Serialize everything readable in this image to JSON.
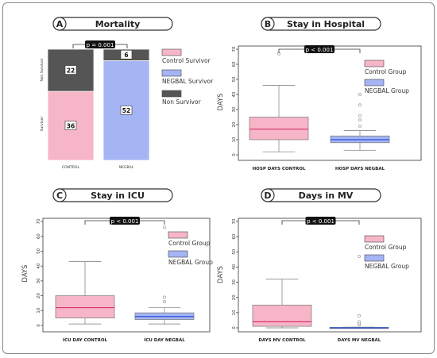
{
  "chart_data": [
    {
      "type": "bar",
      "panel_letter": "A",
      "title": "Mortality",
      "categories": [
        "CONTROL",
        "NEGBAL"
      ],
      "segment_labels": [
        "Survivor",
        "Non Survivor"
      ],
      "series": [
        {
          "name": "Control Survivor",
          "color": "#f7b6c8",
          "values": [
            36,
            0
          ]
        },
        {
          "name": "NEGBAL Survivor",
          "color": "#a5b4f5",
          "values": [
            0,
            52
          ]
        },
        {
          "name": "Non Survivor",
          "color": "#555555",
          "values": [
            22,
            6
          ]
        }
      ],
      "pvalue": "p = 0.001",
      "legend_position": "right"
    },
    {
      "type": "box",
      "panel_letter": "B",
      "title": "Stay in Hospital",
      "ylabel": "DAYS",
      "ylim": [
        0,
        70
      ],
      "yticks": [
        0,
        10,
        20,
        30,
        40,
        50,
        60,
        70
      ],
      "pvalue": "p < 0.001",
      "legend": [
        {
          "name": "Control Group",
          "color": "#f7b6c8"
        },
        {
          "name": "NEGBAL Group",
          "color": "#a5b4f5"
        }
      ],
      "groups": [
        {
          "label": "HOSP DAYS CONTROL",
          "color": "#f7b6c8",
          "median_color": "#d8336e",
          "min": 2,
          "q1": 10,
          "median": 17,
          "q3": 25,
          "max": 46,
          "outliers": [
            67
          ]
        },
        {
          "label": "HOSP DAYS NEGBAL",
          "color": "#a5b4f5",
          "median_color": "#2c52d8",
          "min": 3,
          "q1": 8,
          "median": 10,
          "q3": 12.5,
          "max": 16,
          "outliers": [
            19,
            23,
            26,
            33,
            40
          ]
        }
      ]
    },
    {
      "type": "box",
      "panel_letter": "C",
      "title": "Stay in ICU",
      "ylabel": "DAYS",
      "ylim": [
        0,
        70
      ],
      "yticks": [
        0,
        10,
        20,
        30,
        40,
        50,
        60,
        70
      ],
      "pvalue": "p < 0.001",
      "legend": [
        {
          "name": "Control Group",
          "color": "#f7b6c8"
        },
        {
          "name": "NEGBAL Group",
          "color": "#a5b4f5"
        }
      ],
      "groups": [
        {
          "label": "ICU DAY CONTROL",
          "color": "#f7b6c8",
          "median_color": "#d8336e",
          "min": 1,
          "q1": 5,
          "median": 12,
          "q3": 20,
          "max": 43,
          "outliers": []
        },
        {
          "label": "ICU DAY NEGBAL",
          "color": "#a5b4f5",
          "median_color": "#2c52d8",
          "min": 1,
          "q1": 4,
          "median": 6,
          "q3": 8.5,
          "max": 12,
          "outliers": [
            16,
            19,
            66
          ]
        }
      ]
    },
    {
      "type": "box",
      "panel_letter": "D",
      "title": "Days in MV",
      "ylabel": "DAYS",
      "ylim": [
        0,
        70
      ],
      "yticks": [
        0,
        10,
        20,
        30,
        40,
        50,
        60,
        70
      ],
      "pvalue": "p < 0.001",
      "legend": [
        {
          "name": "Control Group",
          "color": "#f7b6c8"
        },
        {
          "name": "NEGBAL Group",
          "color": "#a5b4f5"
        }
      ],
      "groups": [
        {
          "label": "DAYS MV CONTROL",
          "color": "#f7b6c8",
          "median_color": "#d8336e",
          "min": 0,
          "q1": 1,
          "median": 4,
          "q3": 15,
          "max": 32,
          "outliers": []
        },
        {
          "label": "DAYS MV NEGBAL",
          "color": "#a5b4f5",
          "median_color": "#2c52d8",
          "min": 0,
          "q1": 0,
          "median": 0,
          "q3": 0.3,
          "max": 0.5,
          "outliers": [
            2,
            3,
            4,
            8,
            47
          ]
        }
      ]
    }
  ]
}
